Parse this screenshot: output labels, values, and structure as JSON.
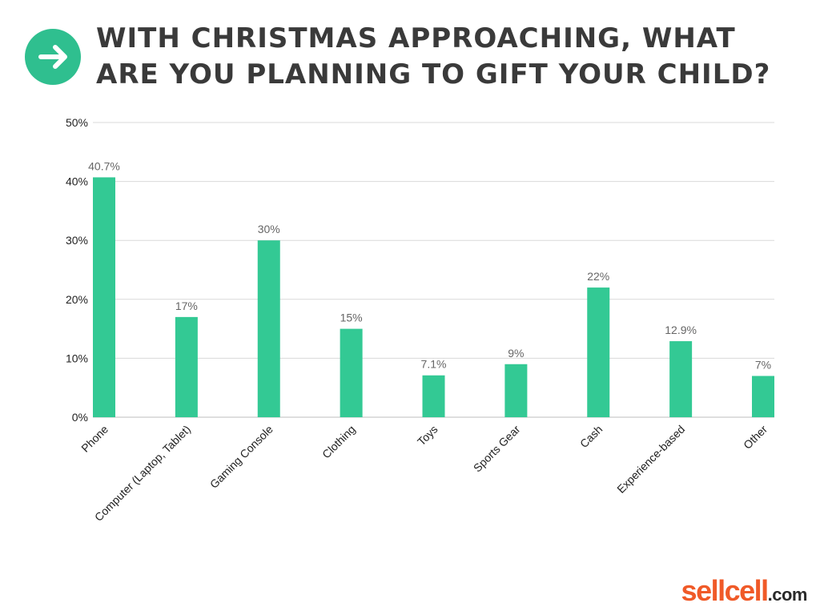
{
  "header": {
    "title": "WITH CHRISTMAS APPROACHING, WHAT ARE YOU PLANNING TO GIFT YOUR CHILD?",
    "icon": "arrow-right-icon",
    "icon_color": "#2fbf8f"
  },
  "chart_data": {
    "type": "bar",
    "title": "WITH CHRISTMAS APPROACHING, WHAT ARE YOU PLANNING TO GIFT YOUR CHILD?",
    "categories": [
      "Phone",
      "Computer (Laptop, Tablet)",
      "Gaming Console",
      "Clothing",
      "Toys",
      "Sports Gear",
      "Cash",
      "Experience-based",
      "Other"
    ],
    "values": [
      40.7,
      17,
      30,
      15,
      7.1,
      9,
      22,
      12.9,
      7
    ],
    "data_labels": [
      "40.7%",
      "17%",
      "30%",
      "15%",
      "7.1%",
      "9%",
      "22%",
      "12.9%",
      "7%"
    ],
    "y_ticks": [
      0,
      10,
      20,
      30,
      40,
      50
    ],
    "y_tick_labels": [
      "0%",
      "10%",
      "20%",
      "30%",
      "40%",
      "50%"
    ],
    "ylim": [
      0,
      50
    ],
    "xlabel": "",
    "ylabel": "",
    "grid": true,
    "legend": "none",
    "bar_color": "#33c994"
  },
  "logo": {
    "part1": "sell",
    "part2": "cell",
    "part3": ".com",
    "color1": "#f05a28",
    "color2": "#2a2a2a"
  }
}
